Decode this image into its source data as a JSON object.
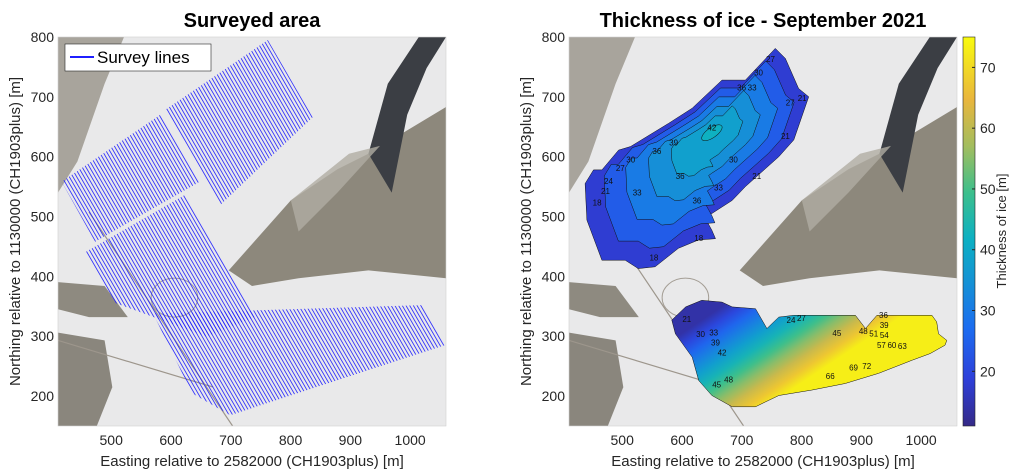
{
  "chart_data": [
    {
      "type": "map-lines",
      "title": "Surveyed area",
      "xlabel": "Easting relative to 2582000 (CH1903plus) [m]",
      "ylabel": "Northing relative to 1130000 (CH1903plus) [m]",
      "xlim": [
        411,
        1060
      ],
      "ylim": [
        150,
        800
      ],
      "xticks": [
        500,
        600,
        700,
        800,
        900,
        1000
      ],
      "yticks": [
        200,
        300,
        400,
        500,
        600,
        700,
        800
      ],
      "legend": {
        "label": "Survey lines",
        "color": "#1f1fff",
        "location": "top-left"
      },
      "survey_blocks": [
        {
          "polygon": [
            [
              417,
              558
            ],
            [
              582,
              670
            ],
            [
              648,
              558
            ],
            [
              473,
              458
            ]
          ]
        },
        {
          "polygon": [
            [
              590,
              678
            ],
            [
              762,
              795
            ],
            [
              837,
              666
            ],
            [
              682,
              519
            ]
          ]
        },
        {
          "polygon": [
            [
              456,
              440
            ],
            [
              623,
              536
            ],
            [
              740,
              332
            ],
            [
              660,
              299
            ],
            [
              503,
              357
            ]
          ]
        },
        {
          "polygon": [
            [
              570,
              338
            ],
            [
              1021,
              352
            ],
            [
              1058,
              285
            ],
            [
              699,
              168
            ],
            [
              635,
              205
            ]
          ]
        }
      ]
    },
    {
      "type": "contour",
      "title": "Thickness of ice - September 2021",
      "xlabel": "Easting relative to 2582000 (CH1903plus) [m]",
      "ylabel": "Northing relative to 1130000 (CH1903plus) [m]",
      "xlim": [
        411,
        1060
      ],
      "ylim": [
        150,
        800
      ],
      "xticks": [
        500,
        600,
        700,
        800,
        900,
        1000
      ],
      "yticks": [
        200,
        300,
        400,
        500,
        600,
        700,
        800
      ],
      "colorbar": {
        "label": "Thickness of ice [m]",
        "lim": [
          11,
          75
        ],
        "ticks": [
          20,
          30,
          40,
          50,
          60,
          70
        ],
        "colormap": "parula"
      },
      "regions": [
        {
          "name": "upper",
          "polygon": [
            [
              438,
              555
            ],
            [
              452,
              578
            ],
            [
              466,
              578
            ],
            [
              494,
              611
            ],
            [
              514,
              617
            ],
            [
              578,
              656
            ],
            [
              617,
              681
            ],
            [
              667,
              728
            ],
            [
              706,
              728
            ],
            [
              756,
              781
            ],
            [
              773,
              764
            ],
            [
              795,
              714
            ],
            [
              812,
              700
            ],
            [
              787,
              628
            ],
            [
              762,
              600
            ],
            [
              706,
              550
            ],
            [
              684,
              527
            ],
            [
              650,
              505
            ],
            [
              639,
              497
            ],
            [
              650,
              477
            ],
            [
              656,
              463
            ],
            [
              628,
              461
            ],
            [
              594,
              447
            ],
            [
              555,
              416
            ],
            [
              527,
              413
            ],
            [
              505,
              427
            ],
            [
              466,
              427
            ],
            [
              441,
              494
            ]
          ],
          "levels": [
            18,
            24,
            30,
            34,
            38
          ],
          "peak": [
            650,
            640
          ],
          "peak_value": 42
        },
        {
          "name": "lower",
          "polygon": [
            [
              583,
              327
            ],
            [
              606,
              349
            ],
            [
              633,
              360
            ],
            [
              667,
              357
            ],
            [
              684,
              349
            ],
            [
              723,
              346
            ],
            [
              742,
              313
            ],
            [
              762,
              332
            ],
            [
              787,
              335
            ],
            [
              890,
              335
            ],
            [
              907,
              313
            ],
            [
              926,
              335
            ],
            [
              1018,
              335
            ],
            [
              1026,
              324
            ],
            [
              1029,
              304
            ],
            [
              1043,
              293
            ],
            [
              1040,
              285
            ],
            [
              1015,
              271
            ],
            [
              985,
              260
            ],
            [
              929,
              238
            ],
            [
              873,
              221
            ],
            [
              817,
              210
            ],
            [
              762,
              201
            ],
            [
              739,
              190
            ],
            [
              723,
              182
            ],
            [
              684,
              182
            ],
            [
              650,
              201
            ],
            [
              628,
              226
            ],
            [
              617,
              265
            ],
            [
              589,
              304
            ]
          ],
          "gradient_from": {
            "x": 660,
            "y": 345,
            "value": 14
          },
          "gradient_to": {
            "x": 760,
            "y": 195,
            "value": 73
          }
        }
      ],
      "contour_labels": [
        {
          "value": "27",
          "x": 748,
          "y": 762
        },
        {
          "value": "30",
          "x": 728,
          "y": 739
        },
        {
          "value": "36",
          "x": 700,
          "y": 714
        },
        {
          "value": "33",
          "x": 717,
          "y": 714
        },
        {
          "value": "27",
          "x": 781,
          "y": 689
        },
        {
          "value": "21",
          "x": 801,
          "y": 697
        },
        {
          "value": "42",
          "x": 650,
          "y": 647
        },
        {
          "value": "39",
          "x": 586,
          "y": 622
        },
        {
          "value": "36",
          "x": 558,
          "y": 608
        },
        {
          "value": "30",
          "x": 514,
          "y": 594
        },
        {
          "value": "27",
          "x": 497,
          "y": 580
        },
        {
          "value": "24",
          "x": 477,
          "y": 558
        },
        {
          "value": "21",
          "x": 472,
          "y": 541
        },
        {
          "value": "18",
          "x": 458,
          "y": 522
        },
        {
          "value": "33",
          "x": 525,
          "y": 539
        },
        {
          "value": "36",
          "x": 597,
          "y": 566
        },
        {
          "value": "33",
          "x": 661,
          "y": 547
        },
        {
          "value": "36",
          "x": 625,
          "y": 525
        },
        {
          "value": "30",
          "x": 686,
          "y": 594
        },
        {
          "value": "21",
          "x": 725,
          "y": 566
        },
        {
          "value": "21",
          "x": 773,
          "y": 633
        },
        {
          "value": "18",
          "x": 553,
          "y": 430
        },
        {
          "value": "18",
          "x": 628,
          "y": 463
        },
        {
          "value": "45",
          "x": 859,
          "y": 304
        },
        {
          "value": "48",
          "x": 907,
          "y": 307
        },
        {
          "value": "51",
          "x": 923,
          "y": 302
        },
        {
          "value": "54",
          "x": 934,
          "y": 299
        },
        {
          "value": "57",
          "x": 937,
          "y": 293
        },
        {
          "value": "60",
          "x": 951,
          "y": 285
        },
        {
          "value": "63",
          "x": 965,
          "y": 282
        },
        {
          "value": "72",
          "x": 909,
          "y": 249
        },
        {
          "value": "69",
          "x": 887,
          "y": 246
        },
        {
          "value": "66",
          "x": 848,
          "y": 232
        },
        {
          "value": "45",
          "x": 658,
          "y": 218
        },
        {
          "value": "48",
          "x": 678,
          "y": 226
        },
        {
          "value": "42",
          "x": 667,
          "y": 277
        },
        {
          "value": "39",
          "x": 656,
          "y": 288
        },
        {
          "value": "33",
          "x": 653,
          "y": 299
        },
        {
          "value": "30",
          "x": 631,
          "y": 302
        },
        {
          "value": "24",
          "x": 787,
          "y": 326
        },
        {
          "value": "27",
          "x": 795,
          "y": 329
        },
        {
          "value": "36",
          "x": 937,
          "y": 326
        },
        {
          "value": "39",
          "x": 937,
          "y": 318
        },
        {
          "value": "21",
          "x": 608,
          "y": 327
        }
      ]
    }
  ]
}
